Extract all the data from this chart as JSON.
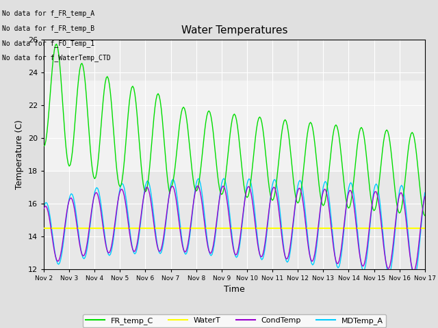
{
  "title": "Water Temperatures",
  "xlabel": "Time",
  "ylabel": "Temperature (C)",
  "ylim": [
    12,
    26
  ],
  "yticks": [
    12,
    14,
    16,
    18,
    20,
    22,
    24,
    26
  ],
  "fig_facecolor": "#e0e0e0",
  "ax_facecolor": "#e8e8e8",
  "grid_color": "white",
  "annotations": [
    "No data for f_FR_temp_A",
    "No data for f_FR_temp_B",
    "No data for f_FO_Temp_1",
    "No data for f_WaterTemp_CTD"
  ],
  "legend_labels": [
    "FR_temp_C",
    "WaterT",
    "CondTemp",
    "MDTemp_A"
  ],
  "legend_colors": [
    "#00dd00",
    "#ffff00",
    "#9900cc",
    "#00ccff"
  ],
  "water_t_value": 14.5,
  "shaded_band": [
    18.0,
    23.5
  ]
}
